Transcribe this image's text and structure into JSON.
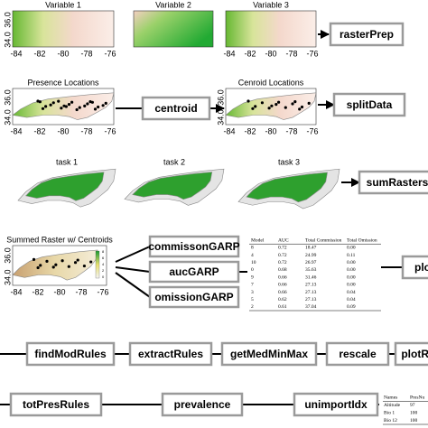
{
  "maps": [
    {
      "title": "Variable 1"
    },
    {
      "title": "Variable 2"
    },
    {
      "title": "Variable 3"
    },
    {
      "title": "Presence Locations"
    },
    {
      "title": "Cenroid Locations"
    },
    {
      "title": "task 1"
    },
    {
      "title": "task 2"
    },
    {
      "title": "task 3"
    },
    {
      "title": "Summed Raster w/ Centroids",
      "legend": [
        "8",
        "6",
        "4",
        "2",
        "0"
      ]
    }
  ],
  "y_axis_labels": [
    "36.0",
    "34.0"
  ],
  "x_axis_labels": [
    "-84",
    "-82",
    "-80",
    "-78",
    "-76"
  ],
  "functions": [
    "rasterPrep",
    "centroid",
    "splitData",
    "sumRasters",
    "commissonGARP",
    "aucGARP",
    "omissionGARP",
    "plo",
    "findModRules",
    "extractRules",
    "getMedMinMax",
    "rescale",
    "plotRa",
    "totPresRules",
    "prevalence",
    "unimportIdx"
  ],
  "model_table": {
    "header": [
      "Model",
      "AUC",
      "Total Commission",
      "Total Omission"
    ],
    "rows": [
      [
        "8",
        "0.72",
        "18.47",
        "0.00"
      ],
      [
        "4",
        "0.72",
        "24.99",
        "0.11"
      ],
      [
        "10",
        "0.72",
        "26.97",
        "0.00"
      ],
      [
        "0",
        "0.68",
        "35.63",
        "0.00"
      ],
      [
        "9",
        "0.66",
        "31.46",
        "0.00"
      ],
      [
        "7",
        "0.66",
        "27.13",
        "0.00"
      ],
      [
        "3",
        "0.66",
        "27.13",
        "0.04"
      ],
      [
        "5",
        "0.62",
        "27.13",
        "0.04"
      ],
      [
        "2",
        "0.61",
        "37.04",
        "0.09"
      ]
    ]
  },
  "importance_table": {
    "header": [
      "Names",
      "PresNu"
    ],
    "rows": [
      [
        "Altitude",
        "97"
      ],
      [
        "Bio 1",
        "100"
      ],
      [
        "Bio 12",
        "100"
      ]
    ]
  }
}
